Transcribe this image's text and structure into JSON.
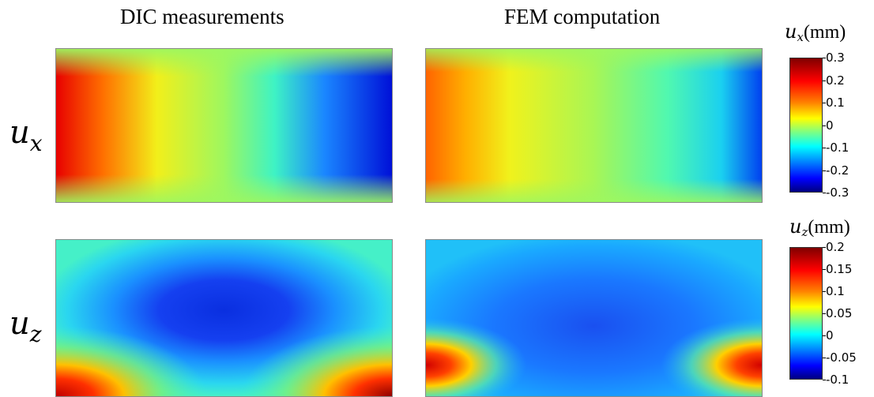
{
  "columns": {
    "dic": "DIC measurements",
    "fem": "FEM computation"
  },
  "rows": {
    "ux": {
      "base": "u",
      "sub": "x"
    },
    "uz": {
      "base": "u",
      "sub": "z"
    }
  },
  "colorbar_ux": {
    "var": "u",
    "sub": "x",
    "unit": "(mm)",
    "ticks": [
      "0.3",
      "0.2",
      "0.1",
      "0",
      "-0.1",
      "-0.2",
      "-0.3"
    ]
  },
  "colorbar_uz": {
    "var": "u",
    "sub": "z",
    "unit": "(mm)",
    "ticks": [
      "0.2",
      "0.15",
      "0.1",
      "0.05",
      "0",
      "-0.05",
      "-0.1"
    ]
  },
  "chart_data": [
    {
      "type": "heatmap",
      "title": "DIC measurements",
      "row_label": "u_x",
      "colorbar_label": "u_x(mm)",
      "vmin": -0.3,
      "vmax": 0.3,
      "colormap": "jet",
      "description_values": {
        "left_edge_max": 0.25,
        "right_edge_min": -0.28,
        "center": 0.0
      }
    },
    {
      "type": "heatmap",
      "title": "FEM computation",
      "row_label": "u_x",
      "colorbar_label": "u_x(mm)",
      "vmin": -0.3,
      "vmax": 0.3,
      "colormap": "jet",
      "description_values": {
        "left_edge_max": 0.18,
        "right_edge_min": -0.25,
        "center": 0.02
      }
    },
    {
      "type": "heatmap",
      "title": "DIC measurements",
      "row_label": "u_z",
      "colorbar_label": "u_z(mm)",
      "vmin": -0.1,
      "vmax": 0.2,
      "colormap": "jet",
      "description_values": {
        "center_min": -0.08,
        "corner_max": 0.2,
        "edges": 0.02
      }
    },
    {
      "type": "heatmap",
      "title": "FEM computation",
      "row_label": "u_z",
      "colorbar_label": "u_z(mm)",
      "vmin": -0.1,
      "vmax": 0.2,
      "colormap": "jet",
      "description_values": {
        "center_min": -0.06,
        "corner_max": 0.17,
        "edges": 0.0
      }
    }
  ]
}
